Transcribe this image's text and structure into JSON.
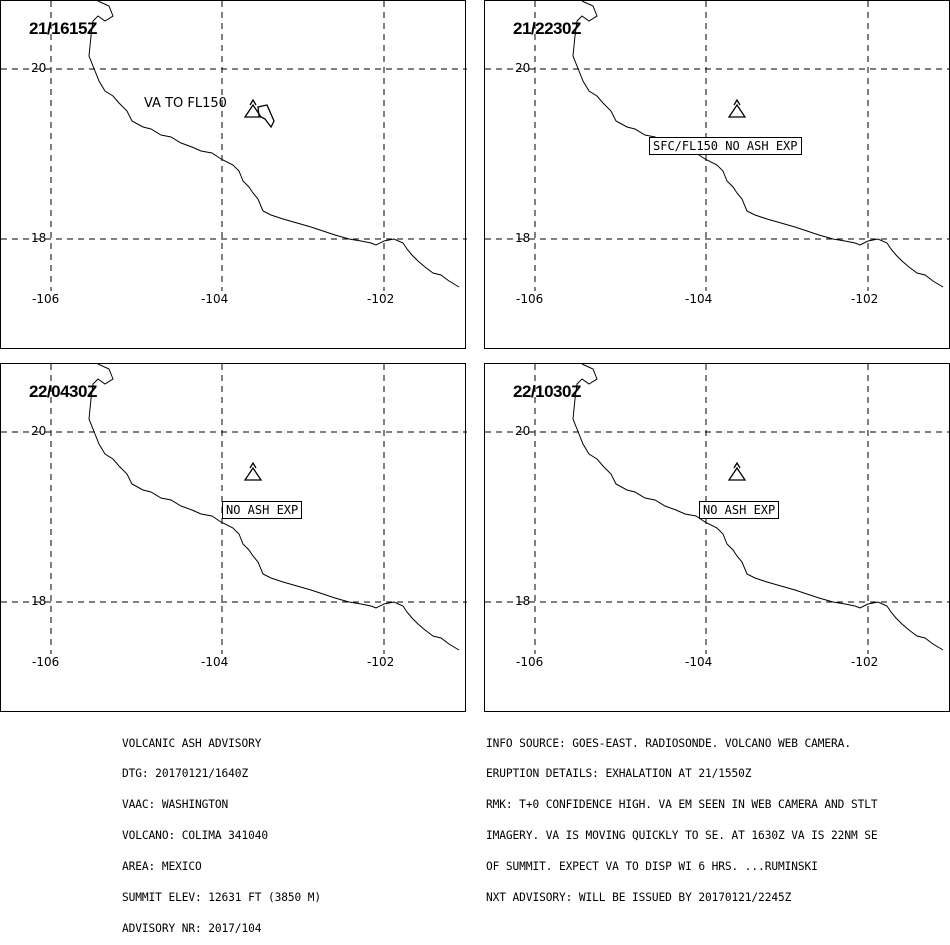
{
  "panels": [
    {
      "time": "21/1615Z",
      "label": "VA TO FL150",
      "boxed_label": ""
    },
    {
      "time": "21/2230Z",
      "label": "",
      "boxed_label": "SFC/FL150 NO ASH EXP"
    },
    {
      "time": "22/0430Z",
      "label": "",
      "boxed_label": "NO ASH EXP"
    },
    {
      "time": "22/1030Z",
      "label": "",
      "boxed_label": "NO ASH EXP"
    }
  ],
  "grid": {
    "lat_labels": [
      "20",
      "18"
    ],
    "lon_labels": [
      "-106",
      "-104",
      "-102"
    ]
  },
  "advisory": {
    "line1": "VOLCANIC ASH ADVISORY",
    "line2": "DTG: 20170121/1640Z",
    "line3": "VAAC: WASHINGTON",
    "line4": "VOLCANO: COLIMA 341040",
    "line5": "AREA: MEXICO",
    "line6": "SUMMIT ELEV: 12631 FT (3850 M)",
    "line7": "ADVISORY NR: 2017/104"
  },
  "info": {
    "line1": "INFO SOURCE: GOES-EAST. RADIOSONDE. VOLCANO WEB CAMERA.",
    "line2": "ERUPTION DETAILS: EXHALATION AT 21/1550Z",
    "line3": "RMK: T+0 CONFIDENCE HIGH. VA EM SEEN IN WEB CAMERA AND STLT",
    "line4": "IMAGERY. VA IS MOVING QUICKLY TO SE. AT 1630Z VA IS 22NM SE",
    "line5": "OF SUMMIT. EXPECT VA TO DISP WI 6 HRS. ...RUMINSKI",
    "line6": "NXT ADVISORY: WILL BE ISSUED BY 20170121/2245Z"
  },
  "colors": {
    "line": "#000000",
    "background": "#ffffff"
  }
}
